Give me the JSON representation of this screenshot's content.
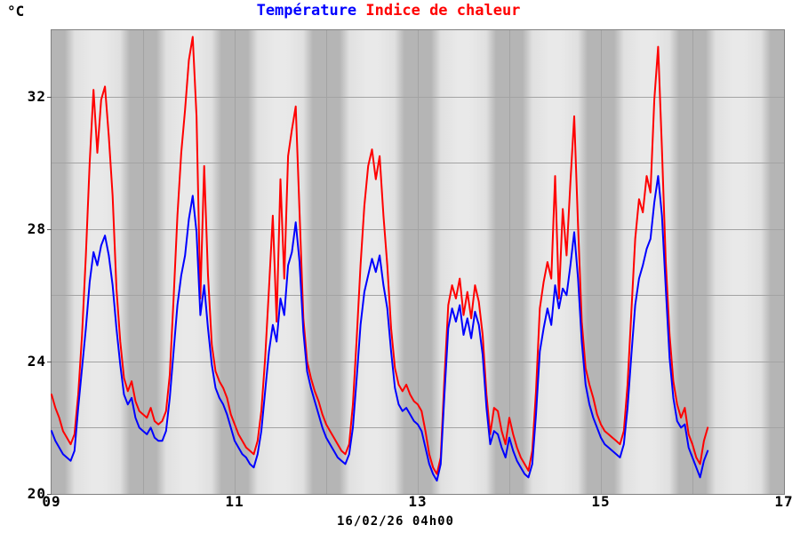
{
  "header": {
    "title_temperature": "Température",
    "title_separator": " ",
    "title_heat_index": "Indice de chaleur",
    "unit_label": "°C"
  },
  "footer": {
    "datetime_label": "16/02/26 04h00"
  },
  "colors": {
    "temperature": "#0000ff",
    "heat_index": "#ff0000",
    "night_band": "#b5b5b5",
    "day_band": "#e0e0e0",
    "day_band_center": "#e9e9e9",
    "gridline": "#a3a3a3",
    "plot_border": "#808080",
    "text": "#000000"
  },
  "chart_data": {
    "type": "line",
    "title": "Température / Indice de chaleur",
    "xlabel": "",
    "ylabel": "°C",
    "ylim": [
      20,
      34
    ],
    "y_gridline_step_deg": 2,
    "y_labeled_ticks": [
      32,
      28,
      24,
      20
    ],
    "y_labeled_tick_labels": [
      "32",
      "28",
      "24",
      "20"
    ],
    "x_day_range": [
      9,
      17
    ],
    "x_labeled_days": [
      9,
      11,
      13,
      15,
      17
    ],
    "x_labeled_day_labels": [
      "09",
      "11",
      "13",
      "15",
      "17"
    ],
    "x_start": "09 00h00",
    "x_end": "16 04h00",
    "sample_interval_hours": 1,
    "grid": true,
    "legend_position": "top-center-as-title",
    "background_bands": "alternating day (light) / night (dark) shading, nights centered on midnight gridlines",
    "series": [
      {
        "name": "Indice de chaleur",
        "color": "#ff0000",
        "values": [
          23.0,
          22.6,
          22.3,
          21.9,
          21.7,
          21.5,
          21.8,
          23.0,
          24.8,
          27.2,
          30.0,
          32.2,
          30.3,
          31.9,
          32.3,
          30.8,
          29.0,
          26.2,
          24.6,
          23.5,
          23.1,
          23.4,
          22.8,
          22.5,
          22.4,
          22.3,
          22.6,
          22.2,
          22.1,
          22.2,
          22.5,
          23.6,
          25.9,
          28.4,
          30.3,
          31.6,
          33.1,
          33.8,
          31.4,
          25.9,
          29.9,
          26.6,
          24.5,
          23.7,
          23.4,
          23.2,
          22.9,
          22.4,
          22.1,
          21.8,
          21.6,
          21.4,
          21.3,
          21.2,
          21.6,
          22.5,
          24.1,
          26.2,
          28.4,
          25.2,
          29.5,
          26.5,
          30.2,
          31.0,
          31.7,
          28.5,
          25.3,
          24.0,
          23.5,
          23.1,
          22.8,
          22.4,
          22.1,
          21.9,
          21.7,
          21.5,
          21.3,
          21.2,
          21.5,
          22.7,
          24.7,
          26.9,
          28.7,
          29.9,
          30.4,
          29.5,
          30.2,
          28.4,
          26.9,
          25.0,
          23.8,
          23.3,
          23.1,
          23.3,
          23.0,
          22.8,
          22.7,
          22.5,
          21.9,
          21.2,
          20.8,
          20.6,
          21.1,
          23.5,
          25.7,
          26.3,
          25.9,
          26.5,
          25.4,
          26.1,
          25.3,
          26.3,
          25.8,
          24.8,
          23.0,
          21.8,
          22.6,
          22.5,
          21.9,
          21.5,
          22.3,
          21.8,
          21.4,
          21.1,
          20.9,
          20.7,
          21.3,
          23.1,
          25.6,
          26.4,
          27.0,
          26.5,
          29.6,
          25.9,
          28.6,
          27.2,
          29.4,
          31.4,
          28.1,
          25.2,
          23.8,
          23.3,
          22.9,
          22.4,
          22.1,
          21.9,
          21.8,
          21.7,
          21.6,
          21.5,
          21.9,
          23.3,
          25.5,
          27.7,
          28.9,
          28.5,
          29.6,
          29.1,
          31.9,
          33.5,
          30.4,
          27.0,
          24.8,
          23.4,
          22.7,
          22.3,
          22.6,
          21.8,
          21.5,
          21.1,
          20.9,
          21.6,
          22.0
        ]
      },
      {
        "name": "Température",
        "color": "#0000ff",
        "values": [
          21.9,
          21.6,
          21.4,
          21.2,
          21.1,
          21.0,
          21.3,
          22.6,
          23.8,
          25.0,
          26.4,
          27.3,
          26.9,
          27.5,
          27.8,
          27.2,
          26.3,
          25.0,
          23.9,
          23.0,
          22.7,
          22.9,
          22.3,
          22.0,
          21.9,
          21.8,
          22.0,
          21.7,
          21.6,
          21.6,
          21.9,
          22.9,
          24.3,
          25.7,
          26.6,
          27.2,
          28.3,
          29.0,
          27.9,
          25.4,
          26.3,
          25.0,
          23.9,
          23.2,
          22.9,
          22.7,
          22.4,
          22.0,
          21.6,
          21.4,
          21.2,
          21.1,
          20.9,
          20.8,
          21.2,
          21.9,
          23.1,
          24.3,
          25.1,
          24.6,
          25.9,
          25.4,
          26.9,
          27.3,
          28.2,
          27.0,
          24.9,
          23.7,
          23.2,
          22.8,
          22.4,
          22.0,
          21.7,
          21.5,
          21.3,
          21.1,
          21.0,
          20.9,
          21.2,
          22.0,
          23.5,
          25.1,
          26.1,
          26.6,
          27.1,
          26.7,
          27.2,
          26.3,
          25.6,
          24.3,
          23.2,
          22.7,
          22.5,
          22.6,
          22.4,
          22.2,
          22.1,
          21.9,
          21.4,
          20.9,
          20.6,
          20.4,
          20.9,
          23.0,
          25.0,
          25.6,
          25.2,
          25.7,
          24.8,
          25.3,
          24.7,
          25.5,
          25.1,
          24.2,
          22.6,
          21.5,
          21.9,
          21.8,
          21.4,
          21.1,
          21.7,
          21.3,
          21.0,
          20.8,
          20.6,
          20.5,
          20.9,
          22.4,
          24.3,
          25.0,
          25.6,
          25.1,
          26.3,
          25.6,
          26.2,
          26.0,
          26.9,
          27.9,
          26.5,
          24.6,
          23.3,
          22.7,
          22.3,
          22.0,
          21.7,
          21.5,
          21.4,
          21.3,
          21.2,
          21.1,
          21.5,
          22.6,
          24.2,
          25.7,
          26.5,
          26.9,
          27.4,
          27.7,
          28.8,
          29.6,
          28.4,
          26.2,
          24.1,
          22.9,
          22.2,
          22.0,
          22.1,
          21.4,
          21.1,
          20.8,
          20.5,
          21.0,
          21.3
        ]
      }
    ]
  }
}
